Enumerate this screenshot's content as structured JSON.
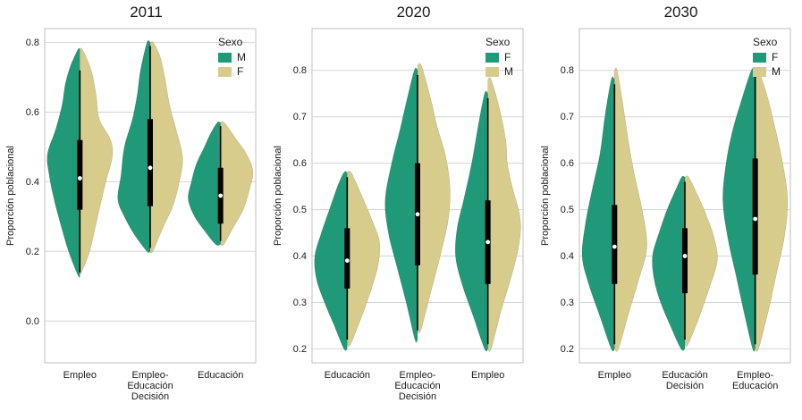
{
  "chart_data": [
    {
      "type": "violin",
      "title": "2011",
      "ylabel": "Proporción poblacional",
      "ylim": [
        -0.12,
        0.84
      ],
      "yticks": [
        0.0,
        0.2,
        0.4,
        0.6,
        0.8
      ],
      "grid": true,
      "legend": {
        "title": "Sexo",
        "position": "top-right",
        "entries": [
          {
            "label": "M",
            "color": "#1f9977"
          },
          {
            "label": "F",
            "color": "#d8cc8d"
          }
        ]
      },
      "violins": [
        {
          "category": "Empleo",
          "left": {
            "sex": "M",
            "profile": [
              [
                0.13,
                0.05
              ],
              [
                0.2,
                0.35
              ],
              [
                0.28,
                0.6
              ],
              [
                0.35,
                0.8
              ],
              [
                0.42,
                0.95
              ],
              [
                0.48,
                1.0
              ],
              [
                0.55,
                0.75
              ],
              [
                0.62,
                0.55
              ],
              [
                0.68,
                0.45
              ],
              [
                0.73,
                0.3
              ],
              [
                0.78,
                0.06
              ]
            ]
          },
          "right": {
            "sex": "F",
            "profile": [
              [
                0.14,
                0.05
              ],
              [
                0.2,
                0.3
              ],
              [
                0.3,
                0.55
              ],
              [
                0.4,
                0.8
              ],
              [
                0.47,
                1.0
              ],
              [
                0.52,
                0.95
              ],
              [
                0.58,
                0.6
              ],
              [
                0.65,
                0.5
              ],
              [
                0.72,
                0.35
              ],
              [
                0.78,
                0.08
              ]
            ]
          },
          "box": {
            "low": 0.14,
            "q1": 0.32,
            "median": 0.41,
            "q3": 0.52,
            "high": 0.72
          }
        },
        {
          "category": "Empleo-\nEducación\nDecisión",
          "left": {
            "sex": "M",
            "profile": [
              [
                0.2,
                0.1
              ],
              [
                0.25,
                0.5
              ],
              [
                0.3,
                0.8
              ],
              [
                0.35,
                1.0
              ],
              [
                0.42,
                0.9
              ],
              [
                0.5,
                0.8
              ],
              [
                0.58,
                0.55
              ],
              [
                0.65,
                0.4
              ],
              [
                0.72,
                0.3
              ],
              [
                0.8,
                0.1
              ]
            ]
          },
          "right": {
            "sex": "F",
            "profile": [
              [
                0.2,
                0.08
              ],
              [
                0.27,
                0.4
              ],
              [
                0.33,
                0.7
              ],
              [
                0.4,
                0.9
              ],
              [
                0.47,
                1.0
              ],
              [
                0.55,
                0.8
              ],
              [
                0.62,
                0.6
              ],
              [
                0.7,
                0.45
              ],
              [
                0.76,
                0.3
              ],
              [
                0.8,
                0.1
              ]
            ]
          },
          "box": {
            "low": 0.21,
            "q1": 0.33,
            "median": 0.44,
            "q3": 0.58,
            "high": 0.79
          }
        },
        {
          "category": "Educación",
          "left": {
            "sex": "M",
            "profile": [
              [
                0.22,
                0.15
              ],
              [
                0.26,
                0.5
              ],
              [
                0.3,
                0.8
              ],
              [
                0.35,
                1.0
              ],
              [
                0.4,
                0.9
              ],
              [
                0.45,
                0.75
              ],
              [
                0.5,
                0.5
              ],
              [
                0.54,
                0.3
              ],
              [
                0.57,
                0.1
              ]
            ]
          },
          "right": {
            "sex": "F",
            "profile": [
              [
                0.22,
                0.1
              ],
              [
                0.27,
                0.4
              ],
              [
                0.32,
                0.7
              ],
              [
                0.38,
                0.9
              ],
              [
                0.43,
                1.0
              ],
              [
                0.48,
                0.8
              ],
              [
                0.52,
                0.5
              ],
              [
                0.57,
                0.12
              ]
            ]
          },
          "box": {
            "low": 0.23,
            "q1": 0.28,
            "median": 0.36,
            "q3": 0.44,
            "high": 0.56
          }
        }
      ]
    },
    {
      "type": "violin",
      "title": "2020",
      "ylabel": "Proporción poblacional",
      "ylim": [
        0.17,
        0.89
      ],
      "yticks": [
        0.2,
        0.3,
        0.4,
        0.5,
        0.6,
        0.7,
        0.8
      ],
      "grid": true,
      "legend": {
        "title": "Sexo",
        "position": "top-right",
        "entries": [
          {
            "label": "F",
            "color": "#1f9977"
          },
          {
            "label": "M",
            "color": "#d8cc8d"
          }
        ]
      },
      "violins": [
        {
          "category": "Educación",
          "left": {
            "sex": "F",
            "profile": [
              [
                0.2,
                0.1
              ],
              [
                0.25,
                0.4
              ],
              [
                0.3,
                0.7
              ],
              [
                0.35,
                0.95
              ],
              [
                0.4,
                1.0
              ],
              [
                0.45,
                0.8
              ],
              [
                0.5,
                0.55
              ],
              [
                0.55,
                0.3
              ],
              [
                0.58,
                0.1
              ]
            ]
          },
          "right": {
            "sex": "M",
            "profile": [
              [
                0.21,
                0.1
              ],
              [
                0.27,
                0.45
              ],
              [
                0.33,
                0.75
              ],
              [
                0.38,
                0.95
              ],
              [
                0.43,
                1.0
              ],
              [
                0.48,
                0.75
              ],
              [
                0.53,
                0.45
              ],
              [
                0.58,
                0.12
              ]
            ]
          },
          "box": {
            "low": 0.22,
            "q1": 0.33,
            "median": 0.39,
            "q3": 0.46,
            "high": 0.57
          }
        },
        {
          "category": "Empleo-\nEducación\nDecisión",
          "left": {
            "sex": "F",
            "profile": [
              [
                0.22,
                0.08
              ],
              [
                0.3,
                0.35
              ],
              [
                0.38,
                0.65
              ],
              [
                0.45,
                0.9
              ],
              [
                0.52,
                1.0
              ],
              [
                0.6,
                0.8
              ],
              [
                0.67,
                0.55
              ],
              [
                0.73,
                0.35
              ],
              [
                0.8,
                0.1
              ]
            ]
          },
          "right": {
            "sex": "M",
            "profile": [
              [
                0.24,
                0.1
              ],
              [
                0.32,
                0.4
              ],
              [
                0.4,
                0.7
              ],
              [
                0.48,
                0.95
              ],
              [
                0.55,
                1.0
              ],
              [
                0.62,
                0.85
              ],
              [
                0.68,
                0.6
              ],
              [
                0.74,
                0.4
              ],
              [
                0.81,
                0.12
              ]
            ]
          },
          "box": {
            "low": 0.24,
            "q1": 0.38,
            "median": 0.49,
            "q3": 0.6,
            "high": 0.79
          }
        },
        {
          "category": "Empleo",
          "left": {
            "sex": "F",
            "profile": [
              [
                0.2,
                0.1
              ],
              [
                0.27,
                0.45
              ],
              [
                0.34,
                0.8
              ],
              [
                0.4,
                1.0
              ],
              [
                0.46,
                0.95
              ],
              [
                0.52,
                0.75
              ],
              [
                0.6,
                0.5
              ],
              [
                0.68,
                0.3
              ],
              [
                0.75,
                0.1
              ]
            ]
          },
          "right": {
            "sex": "M",
            "profile": [
              [
                0.2,
                0.1
              ],
              [
                0.28,
                0.4
              ],
              [
                0.35,
                0.7
              ],
              [
                0.42,
                0.95
              ],
              [
                0.48,
                1.0
              ],
              [
                0.55,
                0.75
              ],
              [
                0.6,
                0.6
              ],
              [
                0.65,
                0.55
              ],
              [
                0.72,
                0.35
              ],
              [
                0.78,
                0.1
              ]
            ]
          },
          "box": {
            "low": 0.21,
            "q1": 0.34,
            "median": 0.43,
            "q3": 0.52,
            "high": 0.74
          }
        }
      ]
    },
    {
      "type": "violin",
      "title": "2030",
      "ylabel": "Proporción poblacional",
      "ylim": [
        0.17,
        0.89
      ],
      "yticks": [
        0.2,
        0.3,
        0.4,
        0.5,
        0.6,
        0.7,
        0.8
      ],
      "grid": true,
      "legend": {
        "title": "Sexo",
        "position": "top-right",
        "entries": [
          {
            "label": "F",
            "color": "#1f9977"
          },
          {
            "label": "M",
            "color": "#d8cc8d"
          }
        ]
      },
      "violins": [
        {
          "category": "Empleo",
          "left": {
            "sex": "F",
            "profile": [
              [
                0.2,
                0.1
              ],
              [
                0.27,
                0.45
              ],
              [
                0.34,
                0.8
              ],
              [
                0.4,
                1.0
              ],
              [
                0.47,
                0.9
              ],
              [
                0.54,
                0.7
              ],
              [
                0.62,
                0.45
              ],
              [
                0.7,
                0.3
              ],
              [
                0.78,
                0.1
              ]
            ]
          },
          "right": {
            "sex": "M",
            "profile": [
              [
                0.2,
                0.12
              ],
              [
                0.28,
                0.45
              ],
              [
                0.35,
                0.75
              ],
              [
                0.42,
                1.0
              ],
              [
                0.5,
                0.85
              ],
              [
                0.58,
                0.6
              ],
              [
                0.66,
                0.4
              ],
              [
                0.73,
                0.25
              ],
              [
                0.8,
                0.08
              ]
            ]
          },
          "box": {
            "low": 0.21,
            "q1": 0.34,
            "median": 0.42,
            "q3": 0.51,
            "high": 0.77
          }
        },
        {
          "category": "Educación\nDecisión",
          "left": {
            "sex": "F",
            "profile": [
              [
                0.2,
                0.12
              ],
              [
                0.25,
                0.45
              ],
              [
                0.3,
                0.75
              ],
              [
                0.35,
                0.95
              ],
              [
                0.4,
                1.0
              ],
              [
                0.45,
                0.8
              ],
              [
                0.5,
                0.55
              ],
              [
                0.54,
                0.3
              ],
              [
                0.57,
                0.1
              ]
            ]
          },
          "right": {
            "sex": "M",
            "profile": [
              [
                0.21,
                0.1
              ],
              [
                0.27,
                0.45
              ],
              [
                0.33,
                0.75
              ],
              [
                0.39,
                1.0
              ],
              [
                0.44,
                0.9
              ],
              [
                0.49,
                0.65
              ],
              [
                0.53,
                0.4
              ],
              [
                0.57,
                0.12
              ]
            ]
          },
          "box": {
            "low": 0.22,
            "q1": 0.32,
            "median": 0.4,
            "q3": 0.46,
            "high": 0.56
          }
        },
        {
          "category": "Empleo-\nEducación",
          "left": {
            "sex": "F",
            "profile": [
              [
                0.2,
                0.08
              ],
              [
                0.28,
                0.35
              ],
              [
                0.36,
                0.6
              ],
              [
                0.44,
                0.85
              ],
              [
                0.52,
                1.0
              ],
              [
                0.6,
                0.9
              ],
              [
                0.67,
                0.7
              ],
              [
                0.73,
                0.45
              ],
              [
                0.8,
                0.12
              ]
            ]
          },
          "right": {
            "sex": "M",
            "profile": [
              [
                0.2,
                0.1
              ],
              [
                0.28,
                0.4
              ],
              [
                0.36,
                0.65
              ],
              [
                0.44,
                0.9
              ],
              [
                0.52,
                1.0
              ],
              [
                0.6,
                0.85
              ],
              [
                0.68,
                0.6
              ],
              [
                0.75,
                0.35
              ],
              [
                0.8,
                0.1
              ]
            ]
          },
          "box": {
            "low": 0.21,
            "q1": 0.36,
            "median": 0.48,
            "q3": 0.61,
            "high": 0.79
          }
        }
      ]
    }
  ],
  "style": {
    "grid_color": "#d6d6d6",
    "border_color": "#bfbfbf",
    "box_color": "#000000",
    "median_color": "#ffffff"
  }
}
